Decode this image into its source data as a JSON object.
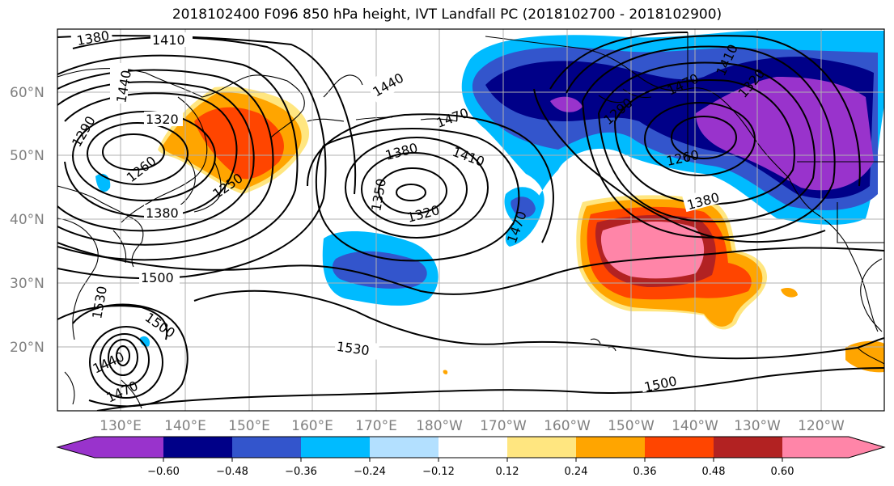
{
  "title": "2018102400 F096 850 hPa height, IVT Landfall PC (2018102700 - 2018102900)",
  "map": {
    "projection": "PlateCarree",
    "lat_labels": [
      "60°N",
      "50°N",
      "40°N",
      "30°N",
      "20°N"
    ],
    "lon_labels": [
      "130°E",
      "140°E",
      "150°E",
      "160°E",
      "170°E",
      "180°W",
      "170°W",
      "160°W",
      "150°W",
      "140°W",
      "130°W",
      "120°W"
    ],
    "gridlines": true,
    "contour_color": "#000000",
    "contour_labels": [
      "1380",
      "1410",
      "1440",
      "1320",
      "1290",
      "1260",
      "1250",
      "1380",
      "1500",
      "1530",
      "1500",
      "1440",
      "1470",
      "1440",
      "1470",
      "1380",
      "1410",
      "1350",
      "1320",
      "1470",
      "1470",
      "1290",
      "1320",
      "1410",
      "1260",
      "1380",
      "1530",
      "1500"
    ]
  },
  "colorbar": {
    "extend": "both",
    "tick_labels": [
      "−0.60",
      "−0.48",
      "−0.36",
      "−0.24",
      "−0.12",
      "0.12",
      "0.24",
      "0.36",
      "0.48",
      "0.60"
    ],
    "colors": [
      "#9933cc",
      "#000088",
      "#3355cc",
      "#00bbff",
      "#b3e0ff",
      "#ffffff",
      "#ffe680",
      "#ffa500",
      "#ff4500",
      "#b22222",
      "#ff85a8",
      "#ff85a8"
    ]
  }
}
